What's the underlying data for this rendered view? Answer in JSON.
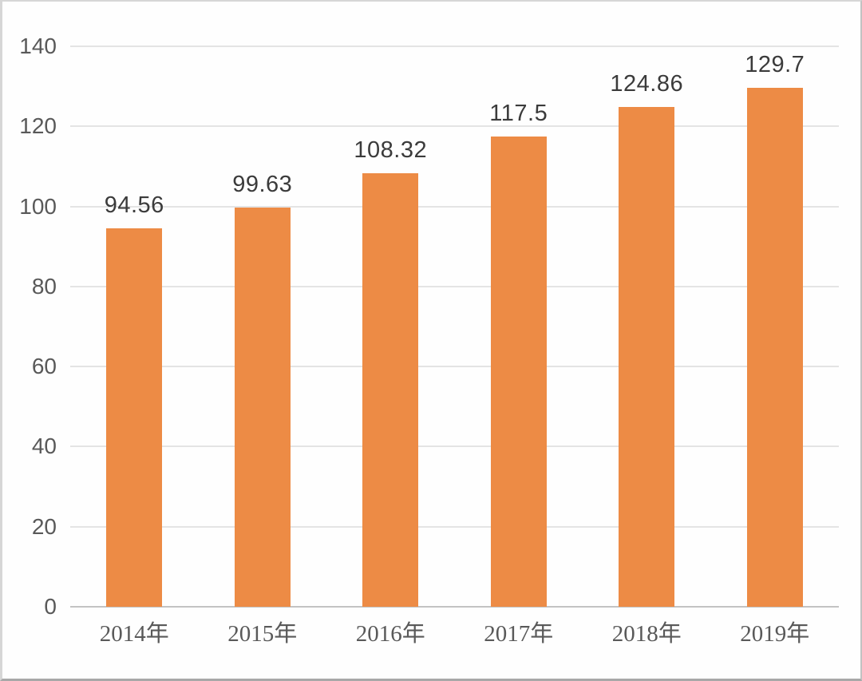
{
  "chart_data": {
    "type": "bar",
    "categories": [
      "2014年",
      "2015年",
      "2016年",
      "2017年",
      "2018年",
      "2019年"
    ],
    "values": [
      94.56,
      99.63,
      108.32,
      117.5,
      124.86,
      129.7
    ],
    "data_labels": [
      "94.56",
      "99.63",
      "108.32",
      "117.5",
      "124.86",
      "129.7"
    ],
    "title": "",
    "xlabel": "",
    "ylabel": "",
    "ylim": [
      0,
      140
    ],
    "yticks": [
      0,
      20,
      40,
      60,
      80,
      100,
      120,
      140
    ],
    "grid": true,
    "legend": "none",
    "colors": {
      "bar": "#ed8b45",
      "gridline": "#e4e4e4",
      "axis_line": "#c3c3c3",
      "axis_tick_label": "#595959",
      "data_label": "#3b3b3b",
      "background": "#fefefe"
    }
  }
}
